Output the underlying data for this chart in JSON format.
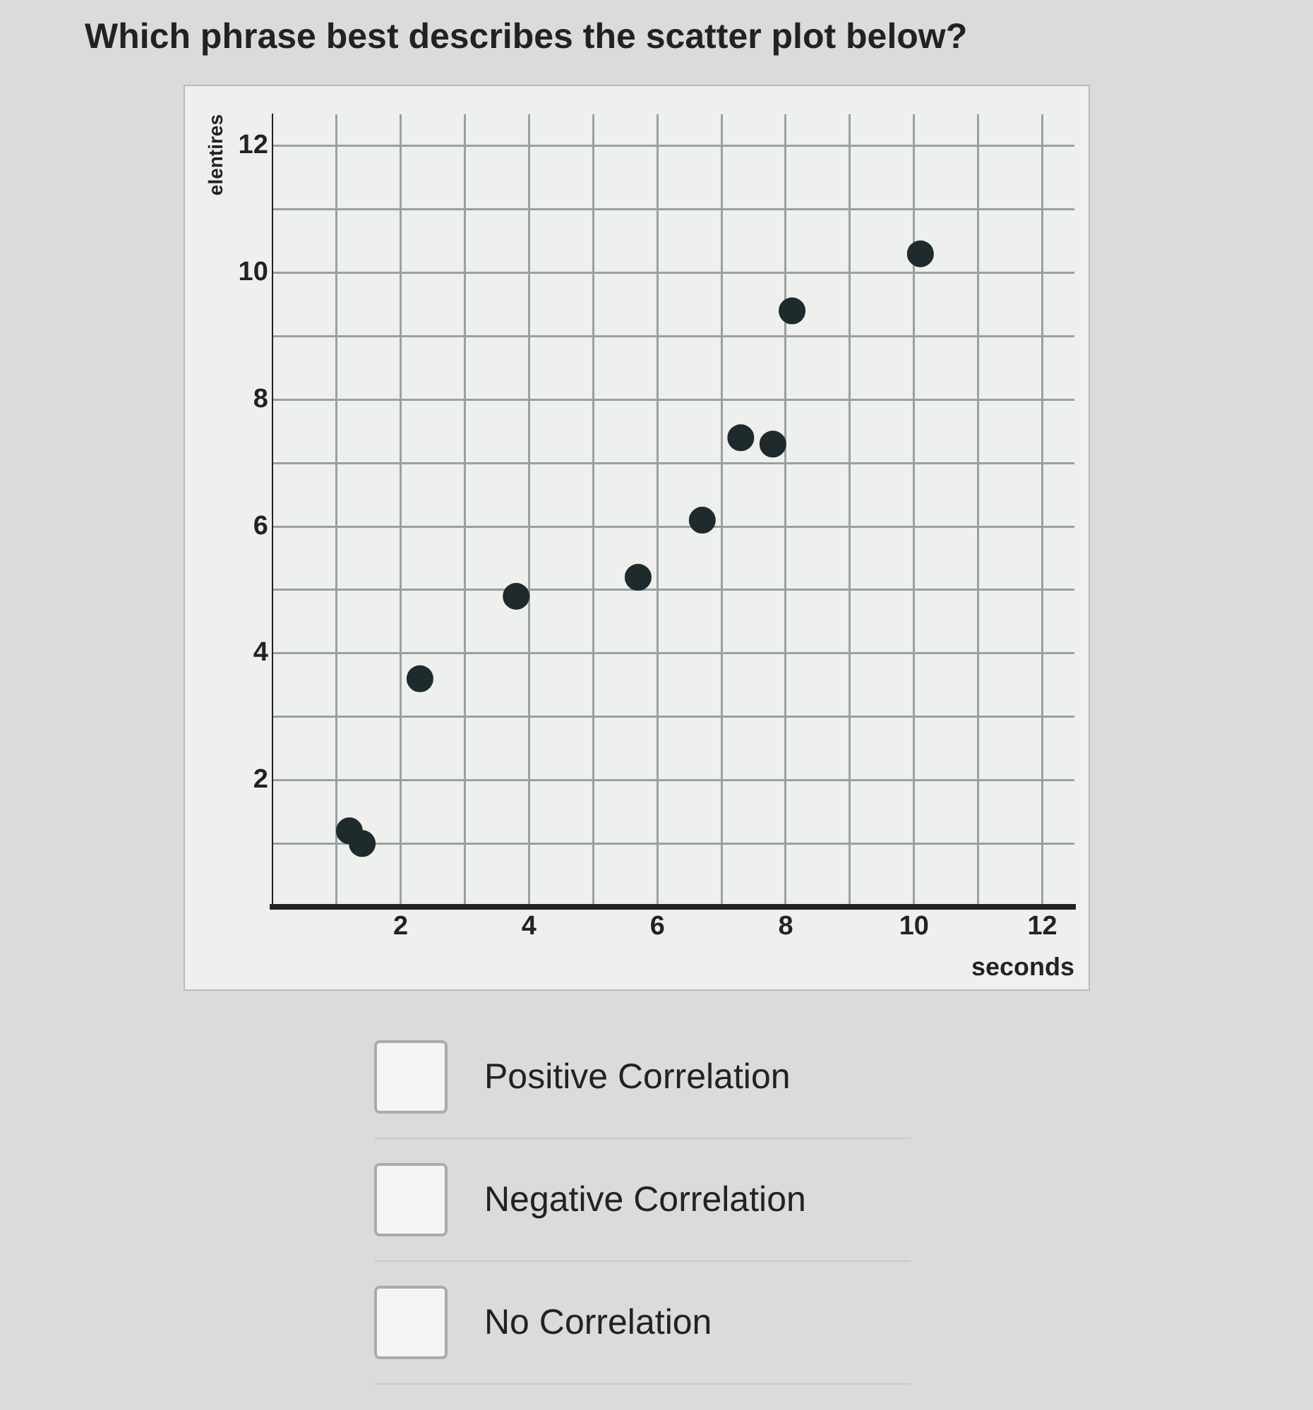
{
  "chart_data": {
    "type": "scatter",
    "title": "Which phrase best describes the scatter plot below?",
    "xlabel": "seconds",
    "ylabel": "elentires",
    "x": [
      1.2,
      1.4,
      2.3,
      3.8,
      5.7,
      6.7,
      7.3,
      7.8,
      8.1,
      10.1
    ],
    "values": [
      1.2,
      1.0,
      3.6,
      4.9,
      5.2,
      6.1,
      7.4,
      7.3,
      9.4,
      10.3
    ],
    "color": "#1f2a2c",
    "marker": "circle",
    "grid": true,
    "xlim": [
      0,
      12.5
    ],
    "ylim": [
      0,
      12.5
    ],
    "xticks": [
      {
        "value": 1,
        "label": null
      },
      2,
      {
        "value": 3,
        "label": null
      },
      4,
      {
        "value": 5,
        "label": null
      },
      6,
      {
        "value": 7,
        "label": null
      },
      8,
      {
        "value": 9,
        "label": null
      },
      10,
      {
        "value": 11,
        "label": null
      },
      12
    ],
    "yticks": [
      {
        "value": 1,
        "label": null
      },
      2,
      {
        "value": 3,
        "label": null
      },
      4,
      {
        "value": 5,
        "label": null
      },
      6,
      {
        "value": 7,
        "label": null
      },
      8,
      {
        "value": 9,
        "label": null
      },
      10,
      {
        "value": 11,
        "label": null
      },
      12
    ],
    "annotations": [
      "Positive Correlation",
      "Negative Correlation",
      "No Correlation"
    ]
  }
}
